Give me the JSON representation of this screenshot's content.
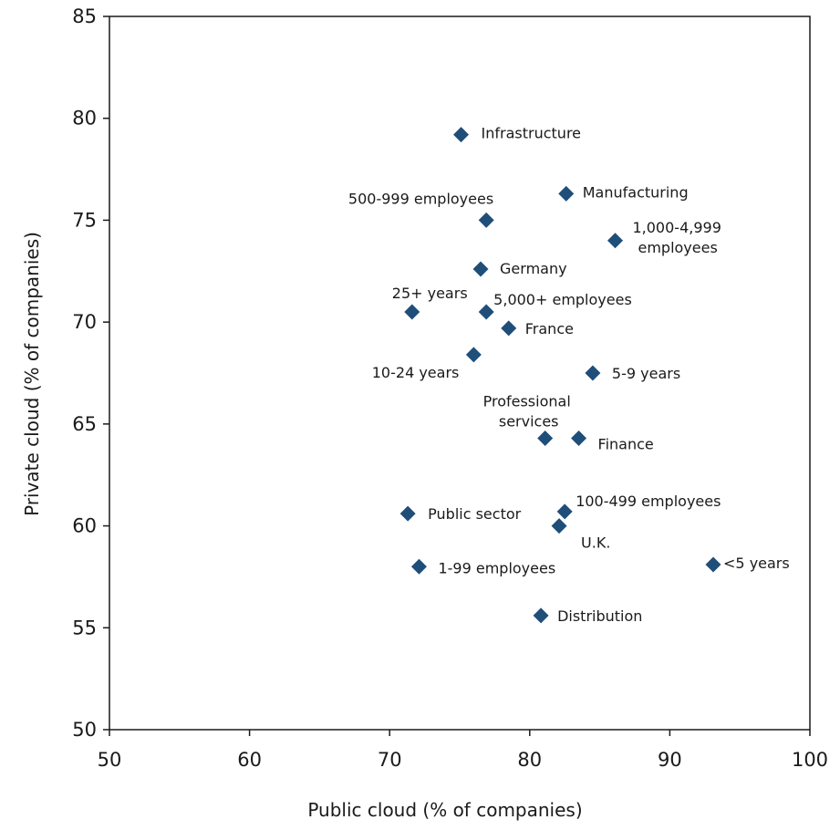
{
  "chart_data": {
    "type": "scatter",
    "title": "",
    "xlabel": "Public cloud (% of companies)",
    "ylabel": "Private cloud (% of companies)",
    "xlim": [
      50,
      100
    ],
    "ylim": [
      50,
      85
    ],
    "xticks": [
      50,
      60,
      70,
      80,
      90,
      100
    ],
    "yticks": [
      50,
      55,
      60,
      65,
      70,
      75,
      80,
      85
    ],
    "grid": false,
    "marker": "diamond",
    "marker_color": "#1f4e79",
    "points": [
      {
        "label": "Infrastructure",
        "x": 75.1,
        "y": 79.2
      },
      {
        "label": "Manufacturing",
        "x": 82.6,
        "y": 76.3
      },
      {
        "label": "500-999 employees",
        "x": 76.9,
        "y": 75.0
      },
      {
        "label": "1,000-4,999 employees",
        "x": 86.1,
        "y": 74.0
      },
      {
        "label": "Germany",
        "x": 76.5,
        "y": 72.6
      },
      {
        "label": "25+ years",
        "x": 71.6,
        "y": 70.5
      },
      {
        "label": "5,000+ employees",
        "x": 76.9,
        "y": 70.5
      },
      {
        "label": "France",
        "x": 78.5,
        "y": 69.7
      },
      {
        "label": "10-24 years",
        "x": 76.0,
        "y": 68.4
      },
      {
        "label": "5-9 years",
        "x": 84.5,
        "y": 67.5
      },
      {
        "label": "Professional services",
        "x": 81.1,
        "y": 64.3
      },
      {
        "label": "Finance",
        "x": 83.5,
        "y": 64.3
      },
      {
        "label": "100-499 employees",
        "x": 82.5,
        "y": 60.7
      },
      {
        "label": "Public sector",
        "x": 71.3,
        "y": 60.6
      },
      {
        "label": "U.K.",
        "x": 82.1,
        "y": 60.0
      },
      {
        "label": "1-99 employees",
        "x": 72.1,
        "y": 58.0
      },
      {
        "label": "<5 years",
        "x": 93.1,
        "y": 58.1
      },
      {
        "label": "Distribution",
        "x": 80.8,
        "y": 55.6
      }
    ]
  }
}
